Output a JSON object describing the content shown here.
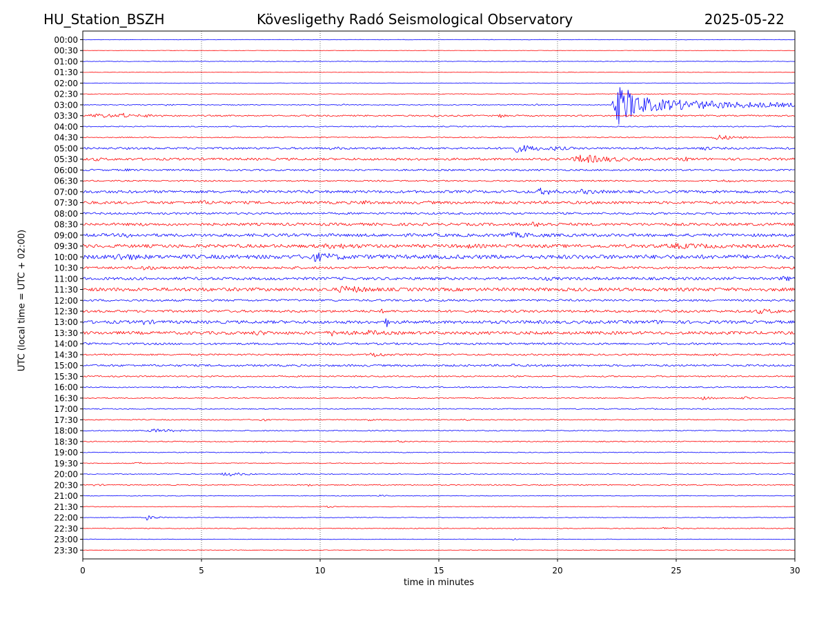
{
  "header": {
    "station": "HU_Station_BSZH",
    "title": "Kövesligethy Radó Seismological Observatory",
    "date": "2025-05-22"
  },
  "chart_data": {
    "type": "line",
    "title": "Kövesligethy Radó Seismological Observatory",
    "xlabel": "time in minutes",
    "ylabel": "UTC (local time = UTC + 02:00)",
    "xlim": [
      0,
      30
    ],
    "x_ticks": [
      0,
      5,
      10,
      15,
      20,
      25,
      30
    ],
    "x_tick_labels": [
      "0",
      "5",
      "10",
      "15",
      "20",
      "25",
      "30"
    ],
    "vertical_grid": true,
    "row_labels": [
      "00:00",
      "00:30",
      "01:00",
      "01:30",
      "02:00",
      "02:30",
      "03:00",
      "03:30",
      "04:00",
      "04:30",
      "05:00",
      "05:30",
      "06:00",
      "06:30",
      "07:00",
      "07:30",
      "08:00",
      "08:30",
      "09:00",
      "09:30",
      "10:00",
      "10:30",
      "11:00",
      "11:30",
      "12:00",
      "12:30",
      "13:00",
      "13:30",
      "14:00",
      "14:30",
      "15:00",
      "15:30",
      "16:00",
      "16:30",
      "17:00",
      "17:30",
      "18:00",
      "18:30",
      "19:00",
      "19:30",
      "20:00",
      "20:30",
      "21:00",
      "21:30",
      "22:00",
      "22:30",
      "23:00",
      "23:30"
    ],
    "row_colors": [
      "#0000ff",
      "#ff0000"
    ],
    "traces": [
      {
        "noise": 0.6,
        "events": []
      },
      {
        "noise": 0.5,
        "events": []
      },
      {
        "noise": 0.8,
        "events": []
      },
      {
        "noise": 0.6,
        "events": [
          {
            "t": 20.5,
            "amp": 2,
            "dur": 0.3
          }
        ]
      },
      {
        "noise": 0.8,
        "events": []
      },
      {
        "noise": 0.8,
        "events": []
      },
      {
        "noise": 1.2,
        "events": [
          {
            "t": 3.3,
            "amp": 4,
            "dur": 0.8
          },
          {
            "t": 11.0,
            "amp": 3,
            "dur": 0.4
          },
          {
            "t": 19.0,
            "amp": 3,
            "dur": 0.5
          },
          {
            "t": 22.6,
            "amp": 60,
            "dur": 1.2
          },
          {
            "t": 24.0,
            "amp": 18,
            "dur": 5.5
          }
        ]
      },
      {
        "noise": 2.0,
        "events": [
          {
            "t": 0.5,
            "amp": 8,
            "dur": 1.5
          },
          {
            "t": 1.6,
            "amp": 14,
            "dur": 0.3
          },
          {
            "t": 2.5,
            "amp": 6,
            "dur": 1.2
          },
          {
            "t": 14.8,
            "amp": 7,
            "dur": 0.4
          },
          {
            "t": 17.6,
            "amp": 7,
            "dur": 0.5
          }
        ]
      },
      {
        "noise": 1.5,
        "events": [
          {
            "t": 29.0,
            "amp": 3,
            "dur": 1.0
          }
        ]
      },
      {
        "noise": 1.5,
        "events": [
          {
            "t": 26.7,
            "amp": 9,
            "dur": 1.0
          },
          {
            "t": 10.0,
            "amp": 3,
            "dur": 0.5
          }
        ]
      },
      {
        "noise": 3.0,
        "events": [
          {
            "t": 10.5,
            "amp": 5,
            "dur": 1.5
          },
          {
            "t": 18.3,
            "amp": 12,
            "dur": 1.5
          },
          {
            "t": 19.8,
            "amp": 8,
            "dur": 1.0
          },
          {
            "t": 26.0,
            "amp": 7,
            "dur": 1.0
          }
        ]
      },
      {
        "noise": 3.5,
        "events": [
          {
            "t": 0.5,
            "amp": 6,
            "dur": 1.0
          },
          {
            "t": 21.0,
            "amp": 14,
            "dur": 2.0
          },
          {
            "t": 25.3,
            "amp": 9,
            "dur": 0.5
          }
        ]
      },
      {
        "noise": 2.5,
        "events": [
          {
            "t": 1.8,
            "amp": 5,
            "dur": 0.5
          },
          {
            "t": 10.0,
            "amp": 5,
            "dur": 0.5
          }
        ]
      },
      {
        "noise": 2.0,
        "events": [
          {
            "t": 27.0,
            "amp": 5,
            "dur": 1.0
          }
        ]
      },
      {
        "noise": 4.0,
        "events": [
          {
            "t": 9.5,
            "amp": 6,
            "dur": 1.0
          },
          {
            "t": 19.3,
            "amp": 12,
            "dur": 1.0
          },
          {
            "t": 21.0,
            "amp": 8,
            "dur": 2.0
          },
          {
            "t": 26.6,
            "amp": 7,
            "dur": 0.5
          }
        ]
      },
      {
        "noise": 4.0,
        "events": [
          {
            "t": 0.3,
            "amp": 6,
            "dur": 0.5
          },
          {
            "t": 5.0,
            "amp": 7,
            "dur": 2.0
          },
          {
            "t": 11.8,
            "amp": 10,
            "dur": 0.6
          },
          {
            "t": 14.5,
            "amp": 6,
            "dur": 1.0
          },
          {
            "t": 22.3,
            "amp": 6,
            "dur": 0.5
          }
        ]
      },
      {
        "noise": 3.0,
        "events": [
          {
            "t": 25.5,
            "amp": 5,
            "dur": 0.6
          }
        ]
      },
      {
        "noise": 4.0,
        "events": [
          {
            "t": 2.5,
            "amp": 7,
            "dur": 0.5
          },
          {
            "t": 11.5,
            "amp": 7,
            "dur": 0.5
          },
          {
            "t": 19.0,
            "amp": 8,
            "dur": 2.0
          }
        ]
      },
      {
        "noise": 4.5,
        "events": [
          {
            "t": 1.9,
            "amp": 9,
            "dur": 0.6
          },
          {
            "t": 14.8,
            "amp": 6,
            "dur": 1.0
          },
          {
            "t": 18.0,
            "amp": 9,
            "dur": 3.0
          }
        ]
      },
      {
        "noise": 5.0,
        "events": [
          {
            "t": 10.5,
            "amp": 9,
            "dur": 3.0
          },
          {
            "t": 16.0,
            "amp": 8,
            "dur": 2.0
          },
          {
            "t": 25.0,
            "amp": 9,
            "dur": 4.0
          }
        ]
      },
      {
        "noise": 6.0,
        "events": [
          {
            "t": 1.5,
            "amp": 12,
            "dur": 2.0
          },
          {
            "t": 9.8,
            "amp": 14,
            "dur": 2.0
          },
          {
            "t": 12.5,
            "amp": 8,
            "dur": 1.0
          }
        ]
      },
      {
        "noise": 3.5,
        "events": [
          {
            "t": 2.5,
            "amp": 8,
            "dur": 1.5
          },
          {
            "t": 8.8,
            "amp": 6,
            "dur": 0.5
          }
        ]
      },
      {
        "noise": 4.0,
        "events": [
          {
            "t": 29.5,
            "amp": 9,
            "dur": 1.0
          },
          {
            "t": 19.5,
            "amp": 6,
            "dur": 2.0
          }
        ]
      },
      {
        "noise": 5.0,
        "events": [
          {
            "t": 11.0,
            "amp": 12,
            "dur": 2.0
          },
          {
            "t": 5.0,
            "amp": 7,
            "dur": 1.0
          }
        ]
      },
      {
        "noise": 3.0,
        "events": [
          {
            "t": 3.0,
            "amp": 6,
            "dur": 0.5
          },
          {
            "t": 14.2,
            "amp": 5,
            "dur": 0.5
          }
        ]
      },
      {
        "noise": 3.5,
        "events": [
          {
            "t": 12.6,
            "amp": 7,
            "dur": 0.5
          },
          {
            "t": 28.5,
            "amp": 8,
            "dur": 2.0
          }
        ]
      },
      {
        "noise": 4.5,
        "events": [
          {
            "t": 2.5,
            "amp": 9,
            "dur": 1.0
          },
          {
            "t": 12.8,
            "amp": 16,
            "dur": 0.3
          },
          {
            "t": 19.0,
            "amp": 8,
            "dur": 0.5
          },
          {
            "t": 24.0,
            "amp": 7,
            "dur": 1.5
          }
        ]
      },
      {
        "noise": 4.5,
        "events": [
          {
            "t": 7.3,
            "amp": 8,
            "dur": 1.5
          },
          {
            "t": 10.5,
            "amp": 10,
            "dur": 1.5
          },
          {
            "t": 12.0,
            "amp": 9,
            "dur": 1.5
          }
        ]
      },
      {
        "noise": 3.0,
        "events": [
          {
            "t": 0.1,
            "amp": 6,
            "dur": 0.3
          },
          {
            "t": 29.5,
            "amp": 5,
            "dur": 0.5
          }
        ]
      },
      {
        "noise": 2.5,
        "events": [
          {
            "t": 12.2,
            "amp": 9,
            "dur": 0.8
          },
          {
            "t": 26.6,
            "amp": 6,
            "dur": 0.5
          }
        ]
      },
      {
        "noise": 3.0,
        "events": [
          {
            "t": 18.1,
            "amp": 8,
            "dur": 0.3
          },
          {
            "t": 20.0,
            "amp": 6,
            "dur": 0.3
          }
        ]
      },
      {
        "noise": 2.0,
        "events": []
      },
      {
        "noise": 1.8,
        "events": [
          {
            "t": 4.0,
            "amp": 3,
            "dur": 0.5
          }
        ]
      },
      {
        "noise": 1.5,
        "events": [
          {
            "t": 26.0,
            "amp": 6,
            "dur": 0.8
          },
          {
            "t": 27.8,
            "amp": 6,
            "dur": 0.4
          }
        ]
      },
      {
        "noise": 1.5,
        "events": [
          {
            "t": 24.0,
            "amp": 3,
            "dur": 0.3
          },
          {
            "t": 29.5,
            "amp": 3,
            "dur": 0.3
          }
        ]
      },
      {
        "noise": 1.5,
        "events": [
          {
            "t": 7.5,
            "amp": 5,
            "dur": 0.4
          },
          {
            "t": 12.0,
            "amp": 5,
            "dur": 0.4
          },
          {
            "t": 16.0,
            "amp": 5,
            "dur": 0.6
          }
        ]
      },
      {
        "noise": 1.5,
        "events": [
          {
            "t": 3.0,
            "amp": 6,
            "dur": 1.5
          }
        ]
      },
      {
        "noise": 1.5,
        "events": [
          {
            "t": 13.3,
            "amp": 5,
            "dur": 0.3
          }
        ]
      },
      {
        "noise": 1.2,
        "events": [
          {
            "t": 7.5,
            "amp": 3,
            "dur": 0.3
          }
        ]
      },
      {
        "noise": 1.2,
        "events": [
          {
            "t": 2.3,
            "amp": 4,
            "dur": 0.6
          }
        ]
      },
      {
        "noise": 1.2,
        "events": [
          {
            "t": 6.0,
            "amp": 7,
            "dur": 1.0
          },
          {
            "t": 9.0,
            "amp": 3,
            "dur": 0.5
          }
        ]
      },
      {
        "noise": 1.5,
        "events": [
          {
            "t": 0.5,
            "amp": 4,
            "dur": 0.5
          },
          {
            "t": 9.5,
            "amp": 4,
            "dur": 0.3
          }
        ]
      },
      {
        "noise": 1.0,
        "events": [
          {
            "t": 12.5,
            "amp": 3,
            "dur": 0.6
          }
        ]
      },
      {
        "noise": 1.0,
        "events": [
          {
            "t": 10.3,
            "amp": 3,
            "dur": 0.5
          }
        ]
      },
      {
        "noise": 1.0,
        "events": [
          {
            "t": 2.7,
            "amp": 8,
            "dur": 0.5
          }
        ]
      },
      {
        "noise": 1.2,
        "events": [
          {
            "t": 24.5,
            "amp": 4,
            "dur": 1.0
          }
        ]
      },
      {
        "noise": 0.8,
        "events": [
          {
            "t": 18.1,
            "amp": 6,
            "dur": 0.2
          }
        ]
      },
      {
        "noise": 0.8,
        "events": []
      }
    ]
  }
}
